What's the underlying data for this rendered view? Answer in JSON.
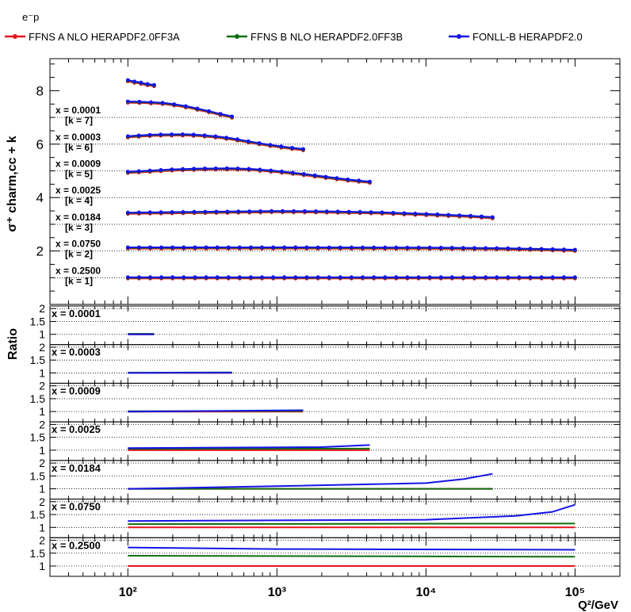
{
  "chart_data": {
    "type": "line",
    "process_label": "e⁻p",
    "legend": [
      {
        "label": "FFNS A NLO HERAPDF2.0FF3A",
        "color": "#e8141e"
      },
      {
        "label": "FFNS B NLO HERAPDF2.0FF3B",
        "color": "#0f6e0f"
      },
      {
        "label": "FONLL-B HERAPDF2.0",
        "color": "#1414e6"
      }
    ],
    "xlabel": "Q²/GeV",
    "xscale": "log",
    "xlim": [
      30,
      200000
    ],
    "x_ticks": [
      {
        "value": 100,
        "label": "10²"
      },
      {
        "value": 1000,
        "label": "10³"
      },
      {
        "value": 10000,
        "label": "10⁴"
      },
      {
        "value": 100000,
        "label": "10⁵"
      }
    ],
    "main_panel": {
      "ylabel": "σ⁺ charm,cc + k",
      "ylim": [
        0,
        9.2
      ],
      "y_ticks": [
        2,
        4,
        6,
        8
      ],
      "grid": "horizontal dotted at k levels",
      "bins": [
        {
          "x_label": "x = 0.0001",
          "k_label": "[k = 7]",
          "k": 7,
          "q2": [
            100,
            110,
            120,
            130,
            150
          ],
          "sigma": [
            8.38,
            8.33,
            8.3,
            8.25,
            8.2
          ]
        },
        {
          "x_label": "x = 0.0003",
          "k_label": "[k = 6]",
          "k": 6,
          "q2": [
            100,
            120,
            150,
            180,
            220,
            260,
            300,
            350,
            400,
            450,
            500
          ],
          "sigma": [
            7.58,
            7.57,
            7.55,
            7.52,
            7.45,
            7.38,
            7.3,
            7.22,
            7.14,
            7.08,
            7.02
          ]
        },
        {
          "x_label": "x = 0.0009",
          "k_label": "[k = 5]",
          "k": 5,
          "q2": [
            100,
            120,
            150,
            200,
            250,
            300,
            400,
            500,
            600,
            800,
            1000,
            1200,
            1500
          ],
          "sigma": [
            6.28,
            6.31,
            6.34,
            6.35,
            6.35,
            6.33,
            6.27,
            6.2,
            6.12,
            6.0,
            5.92,
            5.86,
            5.8
          ]
        },
        {
          "x_label": "x = 0.0025",
          "k_label": "[k = 4]",
          "k": 4,
          "q2": [
            100,
            150,
            200,
            300,
            500,
            700,
            1000,
            1500,
            2000,
            3000,
            4200
          ],
          "sigma": [
            4.95,
            5.0,
            5.04,
            5.07,
            5.08,
            5.05,
            4.98,
            4.87,
            4.78,
            4.66,
            4.58
          ]
        },
        {
          "x_label": "x = 0.0184",
          "k_label": "[k = 3]",
          "k": 3,
          "q2": [
            100,
            200,
            500,
            1000,
            2000,
            5000,
            10000,
            20000,
            28000
          ],
          "sigma": [
            3.42,
            3.44,
            3.46,
            3.48,
            3.47,
            3.43,
            3.37,
            3.3,
            3.25
          ]
        },
        {
          "x_label": "x = 0.0750",
          "k_label": "[k = 2]",
          "k": 2,
          "q2": [
            100,
            1000,
            10000,
            30000,
            60000,
            100000
          ],
          "sigma": [
            2.12,
            2.12,
            2.11,
            2.09,
            2.06,
            2.03
          ]
        },
        {
          "x_label": "x = 0.2500",
          "k_label": "[k = 1]",
          "k": 1,
          "q2": [
            100,
            1000,
            10000,
            100000
          ],
          "sigma": [
            1.0,
            1.0,
            1.0,
            1.0
          ]
        }
      ]
    },
    "ratio_panels": {
      "ylabel": "Ratio",
      "ylim": [
        0.6,
        2.1
      ],
      "y_ticks": [
        1,
        1.5,
        2
      ],
      "bins": [
        {
          "x_label": "x = 0.0001",
          "q2_range": [
            100,
            150
          ],
          "series": [
            {
              "q2": [
                100,
                150
              ],
              "ratio": [
                1.0,
                1.0
              ]
            },
            {
              "q2": [
                100,
                150
              ],
              "ratio": [
                1.02,
                1.02
              ]
            },
            {
              "q2": [
                100,
                150
              ],
              "ratio": [
                1.0,
                1.0
              ]
            }
          ]
        },
        {
          "x_label": "x = 0.0003",
          "q2_range": [
            100,
            500
          ],
          "series": [
            {
              "q2": [
                100,
                500
              ],
              "ratio": [
                1.0,
                1.0
              ]
            },
            {
              "q2": [
                100,
                500
              ],
              "ratio": [
                1.01,
                1.02
              ]
            },
            {
              "q2": [
                100,
                500
              ],
              "ratio": [
                1.0,
                1.01
              ]
            }
          ]
        },
        {
          "x_label": "x = 0.0009",
          "q2_range": [
            100,
            1500
          ],
          "series": [
            {
              "q2": [
                100,
                1500
              ],
              "ratio": [
                1.0,
                1.0
              ]
            },
            {
              "q2": [
                100,
                1500
              ],
              "ratio": [
                1.01,
                1.02
              ]
            },
            {
              "q2": [
                100,
                1500
              ],
              "ratio": [
                1.0,
                1.05
              ]
            }
          ]
        },
        {
          "x_label": "x = 0.0025",
          "q2_range": [
            100,
            4200
          ],
          "series": [
            {
              "q2": [
                100,
                4200
              ],
              "ratio": [
                1.0,
                1.0
              ]
            },
            {
              "q2": [
                100,
                4200
              ],
              "ratio": [
                1.05,
                1.06
              ]
            },
            {
              "q2": [
                100,
                2000,
                4200
              ],
              "ratio": [
                1.08,
                1.12,
                1.2
              ]
            }
          ]
        },
        {
          "x_label": "x = 0.0184",
          "q2_range": [
            100,
            28000
          ],
          "series": [
            {
              "q2": [
                100,
                28000
              ],
              "ratio": [
                1.0,
                1.0
              ]
            },
            {
              "q2": [
                100,
                28000
              ],
              "ratio": [
                1.0,
                1.0
              ]
            },
            {
              "q2": [
                100,
                1000,
                10000,
                18000,
                28000
              ],
              "ratio": [
                1.0,
                1.1,
                1.22,
                1.38,
                1.58
              ]
            }
          ]
        },
        {
          "x_label": "x = 0.0750",
          "q2_range": [
            100,
            100000
          ],
          "series": [
            {
              "q2": [
                100,
                100000
              ],
              "ratio": [
                1.0,
                1.0
              ]
            },
            {
              "q2": [
                100,
                100000
              ],
              "ratio": [
                1.13,
                1.15
              ]
            },
            {
              "q2": [
                100,
                10000,
                40000,
                70000,
                100000
              ],
              "ratio": [
                1.25,
                1.3,
                1.45,
                1.6,
                1.88
              ]
            }
          ]
        },
        {
          "x_label": "x = 0.2500",
          "q2_range": [
            100,
            100000
          ],
          "series": [
            {
              "q2": [
                100,
                100000
              ],
              "ratio": [
                1.0,
                1.0
              ]
            },
            {
              "q2": [
                100,
                100000
              ],
              "ratio": [
                1.4,
                1.36
              ]
            },
            {
              "q2": [
                100,
                1000,
                100000
              ],
              "ratio": [
                1.72,
                1.66,
                1.63
              ]
            }
          ]
        }
      ]
    }
  }
}
